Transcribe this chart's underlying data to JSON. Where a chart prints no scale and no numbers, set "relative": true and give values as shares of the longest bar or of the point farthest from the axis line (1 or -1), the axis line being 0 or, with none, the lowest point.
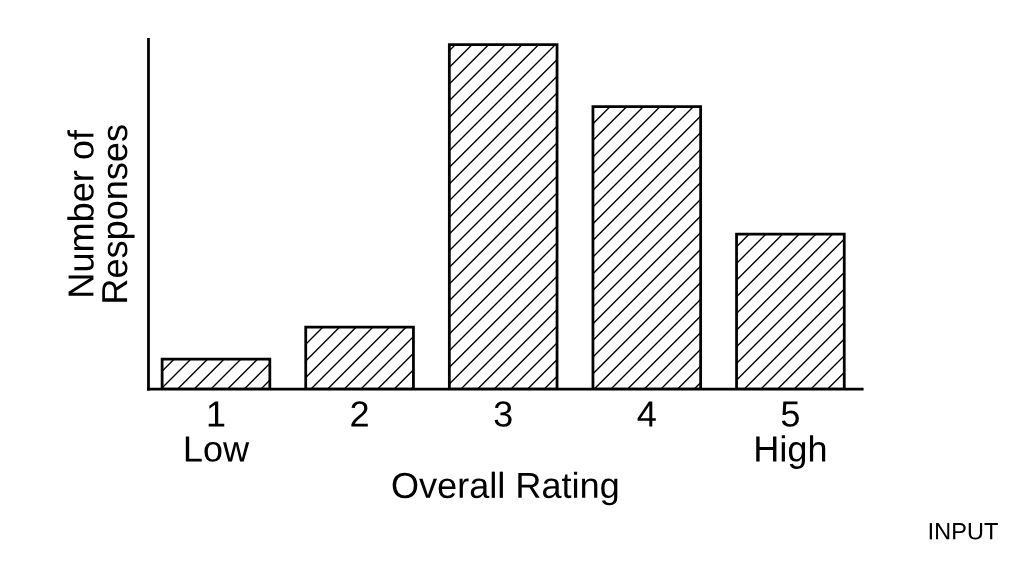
{
  "chart_data": {
    "type": "bar",
    "relative": true,
    "categories": [
      "1\nLow",
      "2",
      "3",
      "4",
      "5\nHigh"
    ],
    "values": [
      0.087,
      0.18,
      1,
      0.82,
      0.45
    ],
    "color": "#000000",
    "xlabel": "Overall Rating",
    "ylabel": "Number of\nResponses",
    "annotations": [
      "INPUT"
    ],
    "grid": false,
    "legend": false
  }
}
